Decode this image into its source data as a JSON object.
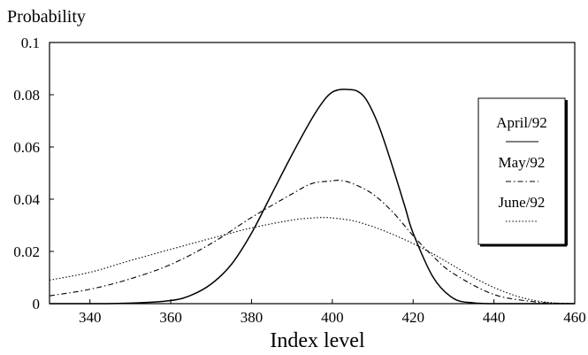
{
  "chart_data": {
    "type": "line",
    "title": "",
    "ylabel": "Probability",
    "xlabel": "Index level",
    "xlim": [
      330,
      460
    ],
    "ylim": [
      0,
      0.1
    ],
    "xticks": [
      340,
      360,
      380,
      400,
      420,
      440,
      460
    ],
    "yticks": [
      0,
      0.02,
      0.04,
      0.06,
      0.08,
      0.1
    ],
    "ytick_labels": [
      "0",
      "0.02",
      "0.04",
      "0.06",
      "0.08",
      "0.1"
    ],
    "grid": false,
    "legend_position": "right",
    "series": [
      {
        "name": "April/92",
        "style": "solid",
        "color": "#000000",
        "x": [
          330,
          340,
          350,
          360,
          365,
          370,
          375,
          380,
          385,
          390,
          395,
          398,
          400,
          402,
          404,
          406,
          408,
          410,
          412,
          415,
          418,
          420,
          425,
          430,
          435,
          440,
          450,
          460
        ],
        "y": [
          0,
          0,
          0.0002,
          0.0012,
          0.0032,
          0.0075,
          0.015,
          0.027,
          0.042,
          0.057,
          0.071,
          0.078,
          0.081,
          0.082,
          0.082,
          0.0815,
          0.079,
          0.0735,
          0.066,
          0.052,
          0.037,
          0.027,
          0.01,
          0.002,
          0.0003,
          0,
          0,
          0
        ]
      },
      {
        "name": "May/92",
        "style": "dashdot",
        "color": "#000000",
        "x": [
          330,
          340,
          350,
          360,
          370,
          380,
          390,
          395,
          400,
          402,
          405,
          410,
          415,
          420,
          425,
          430,
          440,
          450,
          455,
          460
        ],
        "y": [
          0.003,
          0.0055,
          0.0095,
          0.015,
          0.023,
          0.033,
          0.042,
          0.046,
          0.047,
          0.0472,
          0.046,
          0.042,
          0.035,
          0.026,
          0.018,
          0.0115,
          0.0035,
          0.0007,
          0.0002,
          0
        ]
      },
      {
        "name": "June/92",
        "style": "dotted",
        "color": "#000000",
        "x": [
          330,
          340,
          350,
          360,
          370,
          380,
          390,
          395,
          398,
          400,
          405,
          410,
          415,
          420,
          425,
          430,
          435,
          440,
          445,
          450,
          455,
          460
        ],
        "y": [
          0.009,
          0.012,
          0.0165,
          0.0208,
          0.025,
          0.029,
          0.032,
          0.0328,
          0.033,
          0.0328,
          0.0318,
          0.0295,
          0.0265,
          0.023,
          0.019,
          0.0145,
          0.01,
          0.0062,
          0.0032,
          0.0012,
          0.0003,
          0
        ]
      }
    ]
  }
}
